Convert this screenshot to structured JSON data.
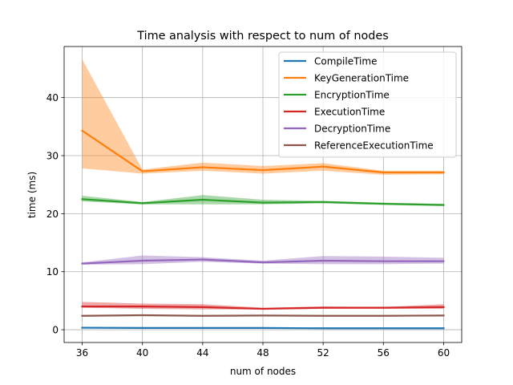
{
  "chart_data": {
    "type": "line",
    "title": "Time analysis with respect to num of nodes",
    "xlabel": "num of nodes",
    "ylabel": "time (ms)",
    "x": [
      36,
      40,
      44,
      48,
      52,
      56,
      60
    ],
    "xlim": [
      34.8,
      61.2
    ],
    "ylim": [
      -2.2,
      48.8
    ],
    "xticks": [
      36,
      40,
      44,
      48,
      52,
      56,
      60
    ],
    "yticks": [
      0,
      10,
      20,
      30,
      40
    ],
    "grid": true,
    "legend_position": "top-right",
    "series": [
      {
        "name": "CompileTime",
        "color": "#1f77b4",
        "values": [
          0.35,
          0.3,
          0.3,
          0.3,
          0.25,
          0.25,
          0.25
        ],
        "lower": [
          0.2,
          0.2,
          0.2,
          0.2,
          0.15,
          0.15,
          0.15
        ],
        "upper": [
          0.5,
          0.45,
          0.4,
          0.4,
          0.35,
          0.35,
          0.35
        ]
      },
      {
        "name": "KeyGenerationTime",
        "color": "#ff7f0e",
        "values": [
          34.3,
          27.3,
          28.0,
          27.5,
          28.1,
          27.1,
          27.1
        ],
        "lower": [
          27.8,
          26.9,
          27.4,
          26.9,
          27.4,
          26.7,
          26.8
        ],
        "upper": [
          46.6,
          27.6,
          28.8,
          28.2,
          28.7,
          27.4,
          27.4
        ]
      },
      {
        "name": "EncryptionTime",
        "color": "#2ca02c",
        "values": [
          22.5,
          21.8,
          22.4,
          21.9,
          22.0,
          21.7,
          21.5
        ],
        "lower": [
          22.1,
          21.6,
          21.6,
          21.6,
          21.8,
          21.5,
          21.3
        ],
        "upper": [
          23.1,
          22.0,
          23.2,
          22.4,
          22.2,
          21.9,
          21.7
        ]
      },
      {
        "name": "ExecutionTime",
        "color": "#d62728",
        "values": [
          4.0,
          4.0,
          3.9,
          3.6,
          3.8,
          3.8,
          3.9
        ],
        "lower": [
          3.8,
          3.6,
          3.5,
          3.5,
          3.6,
          3.6,
          3.6
        ],
        "upper": [
          4.8,
          4.5,
          4.4,
          3.8,
          4.0,
          3.9,
          4.4
        ]
      },
      {
        "name": "DecryptionTime",
        "color": "#9467bd",
        "values": [
          11.4,
          11.9,
          12.1,
          11.6,
          11.9,
          11.8,
          11.8
        ],
        "lower": [
          11.2,
          11.3,
          11.7,
          11.4,
          11.3,
          11.3,
          11.4
        ],
        "upper": [
          11.6,
          12.8,
          12.5,
          11.9,
          12.7,
          12.6,
          12.4
        ]
      },
      {
        "name": "ReferenceExecutionTime",
        "color": "#8c564b",
        "values": [
          2.4,
          2.5,
          2.4,
          2.45,
          2.4,
          2.4,
          2.45
        ],
        "lower": [
          2.3,
          2.4,
          2.3,
          2.35,
          2.3,
          2.3,
          2.35
        ],
        "upper": [
          2.5,
          2.6,
          2.5,
          2.55,
          2.5,
          2.5,
          2.55
        ]
      }
    ]
  }
}
